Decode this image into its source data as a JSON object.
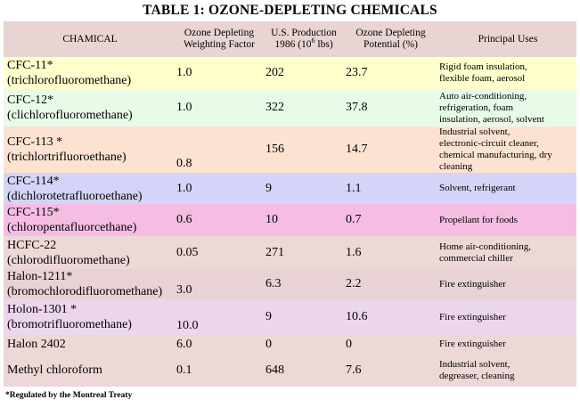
{
  "title": "TABLE 1: OZONE-DEPLETING CHEMICALS",
  "headers": {
    "chemical": "CHAMICAL",
    "weighting_line1": "Ozone Depleting",
    "weighting_line2": "Weighting Factor",
    "production_line1": "U.S. Production",
    "production_line2_pre": "1986 (10",
    "production_line2_sup": "6",
    "production_line2_post": " lbs)",
    "potential_line1": "Ozone Depleting",
    "potential_line2": "Potential (%)",
    "uses": "Principal Uses"
  },
  "rows": [
    {
      "name": "CFC-11*",
      "alt": "(trichlorofluoromethane)",
      "factor": "1.0",
      "production": "202",
      "potential": "23.7",
      "uses": [
        "Rigid foam insulation,",
        "flexible foam, aerosol"
      ],
      "color": "#ffffcc"
    },
    {
      "name": "CFC-12*",
      "alt": "(clichlorofluoromethane)",
      "factor": "1.0",
      "production": "322",
      "potential": "37.8",
      "uses": [
        "Auto air-conditioning,",
        "refrigeration, foam",
        "insulation, aerosol, solvent"
      ],
      "color": "#e8fbe8"
    },
    {
      "name": "CFC-113 *",
      "alt": "(trichlortrifluoroethane)",
      "factor": "0.8",
      "production": "156",
      "potential": "14.7",
      "uses": [
        "Industrial solvent,",
        "electronic-circuit cleaner,",
        "chemical manufacturing, dry",
        "cleaning"
      ],
      "color": "#fde2d2"
    },
    {
      "name": "CFC-114*",
      "alt": "(dichlorotetrafluoroethane)",
      "factor": "1.0",
      "production": "9",
      "potential": "1.1",
      "uses": [
        "Solvent, refrigerant"
      ],
      "color": "#d4d4f8"
    },
    {
      "name": "CFC-115*",
      "alt": "(chloropentafluorcethane)",
      "factor": "0.6",
      "production": "10",
      "potential": "0.7",
      "uses": [
        "Propellant for foods"
      ],
      "color": "#f6bde3"
    },
    {
      "name": "HCFC-22",
      "alt": "(chlorodifluoromethane)",
      "factor": "0.05",
      "production": "271",
      "potential": "1.6",
      "uses": [
        "Home air-conditioning,",
        "commercial chiller"
      ],
      "color": "#ecd8d6"
    },
    {
      "name": "Halon-1211*",
      "alt": "(bromochlorodifluoromethane)",
      "factor": "3.0",
      "production": "6.3",
      "potential": "2.2",
      "uses": [
        "Fire extinguisher"
      ],
      "color": "#e8d2d6"
    },
    {
      "name": "Holon-1301 *",
      "alt": "(bromotrifluoromethane)",
      "factor": "10.0",
      "production": "9",
      "potential": "10.6",
      "uses": [
        "Fire extinguisher"
      ],
      "color": "#ecd6ec"
    },
    {
      "name": "Halon 2402",
      "alt": "",
      "factor": "6.0",
      "production": "0",
      "potential": "0",
      "uses": [
        "Fire extinguisher"
      ],
      "color": "#ecd8d6"
    },
    {
      "name": "Methyl chloroform",
      "alt": "",
      "factor": "0.1",
      "production": "648",
      "potential": "7.6",
      "uses": [
        "Industrial solvent,",
        "degreaser, cleaning"
      ],
      "color": "#ecd8d6"
    }
  ],
  "footnote": "*Regulated by the Montreal Treaty"
}
